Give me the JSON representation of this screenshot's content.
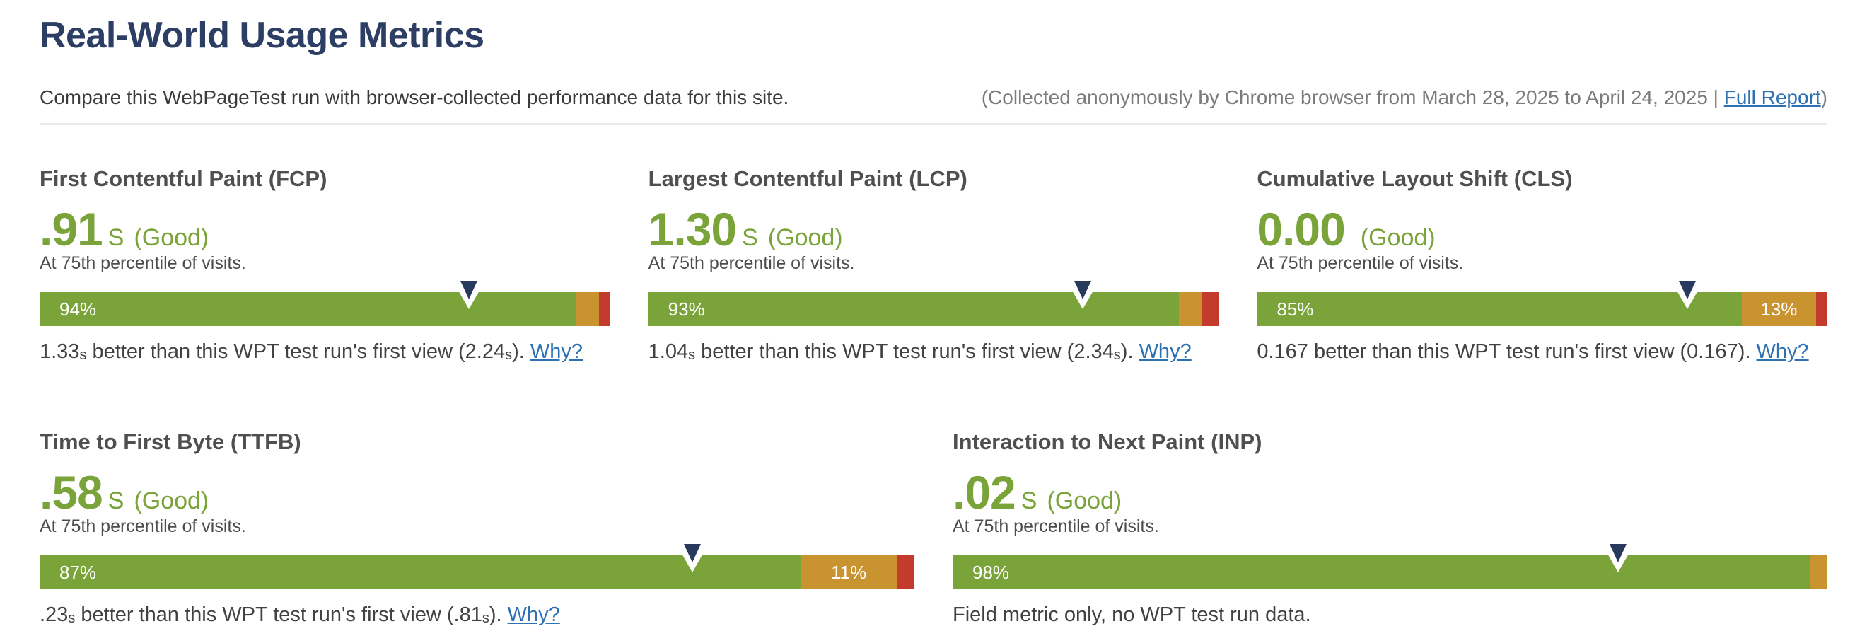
{
  "page": {
    "title": "Real-World Usage Metrics",
    "subtitle": "Compare this WebPageTest run with browser-collected performance data for this site.",
    "collection_note_prefix": "(Collected anonymously by Chrome browser from March 28, 2025 to April 24, 2025 | ",
    "full_report_label": "Full Report",
    "collection_note_suffix": ")"
  },
  "colors": {
    "good_green": "#7aa43a",
    "needs_improvement_orange": "#c9932f",
    "poor_red": "#c33b2c",
    "marker_navy": "#27395d",
    "title_navy": "#2c3e63",
    "link_blue": "#2d70b3"
  },
  "metrics": [
    {
      "id": "fcp",
      "name": "First Contentful Paint (FCP)",
      "value": ".91",
      "unit": "S",
      "rating": "(Good)",
      "percentile_note": "At 75th percentile of visits.",
      "bar": {
        "good_pct": 94,
        "ni_pct": 4,
        "poor_pct": 2,
        "good_label": "94%",
        "ni_label": "",
        "marker_pct": 75.3
      },
      "comparison": {
        "lead": "1.33",
        "lead_sub": "s",
        "body": " better than this WPT test run's first view (2.24",
        "body_sub": "s",
        "close": "). ",
        "link": "Why?"
      }
    },
    {
      "id": "lcp",
      "name": "Largest Contentful Paint (LCP)",
      "value": "1.30",
      "unit": "S",
      "rating": "(Good)",
      "percentile_note": "At 75th percentile of visits.",
      "bar": {
        "good_pct": 93,
        "ni_pct": 4,
        "poor_pct": 3,
        "good_label": "93%",
        "ni_label": "",
        "marker_pct": 76.2
      },
      "comparison": {
        "lead": "1.04",
        "lead_sub": "s",
        "body": " better than this WPT test run's first view (2.34",
        "body_sub": "s",
        "close": "). ",
        "link": "Why?"
      }
    },
    {
      "id": "cls",
      "name": "Cumulative Layout Shift (CLS)",
      "value": "0.00",
      "unit": "",
      "rating": "(Good)",
      "percentile_note": "At 75th percentile of visits.",
      "bar": {
        "good_pct": 85,
        "ni_pct": 13,
        "poor_pct": 2,
        "good_label": "85%",
        "ni_label": "13%",
        "marker_pct": 75.5
      },
      "comparison": {
        "lead": "0.167",
        "lead_sub": "",
        "body": " better than this WPT test run's first view (0.167",
        "body_sub": "",
        "close": "). ",
        "link": "Why?"
      }
    },
    {
      "id": "ttfb",
      "name": "Time to First Byte (TTFB)",
      "value": ".58",
      "unit": "S",
      "rating": "(Good)",
      "percentile_note": "At 75th percentile of visits.",
      "bar": {
        "good_pct": 87,
        "ni_pct": 11,
        "poor_pct": 2,
        "good_label": "87%",
        "ni_label": "11%",
        "marker_pct": 74.6
      },
      "comparison": {
        "lead": ".23",
        "lead_sub": "s",
        "body": " better than this WPT test run's first view (.81",
        "body_sub": "s",
        "close": "). ",
        "link": "Why?"
      }
    },
    {
      "id": "inp",
      "name": "Interaction to Next Paint (INP)",
      "value": ".02",
      "unit": "S",
      "rating": "(Good)",
      "percentile_note": "At 75th percentile of visits.",
      "bar": {
        "good_pct": 98,
        "ni_pct": 2,
        "poor_pct": 0,
        "good_label": "98%",
        "ni_label": "",
        "marker_pct": 76.1
      },
      "comparison": {
        "lead": "Field metric only, no WPT test run data.",
        "lead_sub": "",
        "body": "",
        "body_sub": "",
        "close": "",
        "link": ""
      }
    }
  ]
}
